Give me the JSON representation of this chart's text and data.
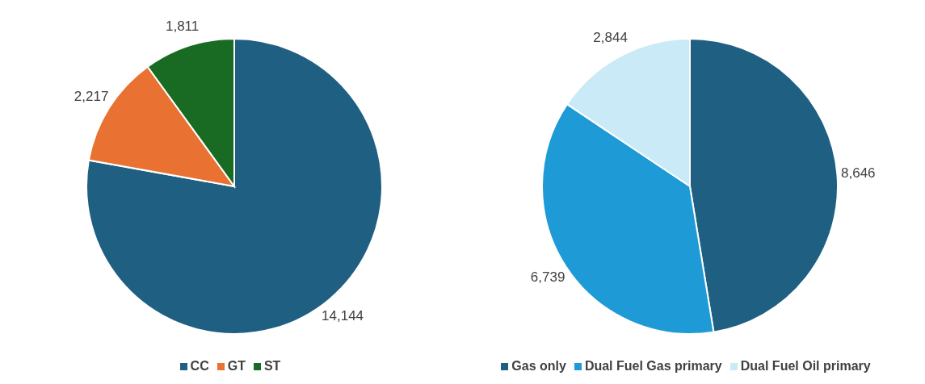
{
  "chart_data": [
    {
      "type": "pie",
      "categories": [
        "CC",
        "GT",
        "ST"
      ],
      "values": [
        14144,
        2217,
        1811
      ],
      "value_labels": [
        "14,144",
        "2,217",
        "1,811"
      ],
      "colors": [
        "#1f5f82",
        "#e97132",
        "#196b24"
      ],
      "legend": "bottom"
    },
    {
      "type": "pie",
      "categories": [
        "Gas only",
        "Dual Fuel Gas primary",
        "Dual Fuel Oil primary"
      ],
      "values": [
        8646,
        6739,
        2844
      ],
      "value_labels": [
        "8,646",
        "6,739",
        "2,844"
      ],
      "colors": [
        "#1f5f82",
        "#1e9bd6",
        "#caeaf8"
      ],
      "legend": "bottom"
    }
  ]
}
